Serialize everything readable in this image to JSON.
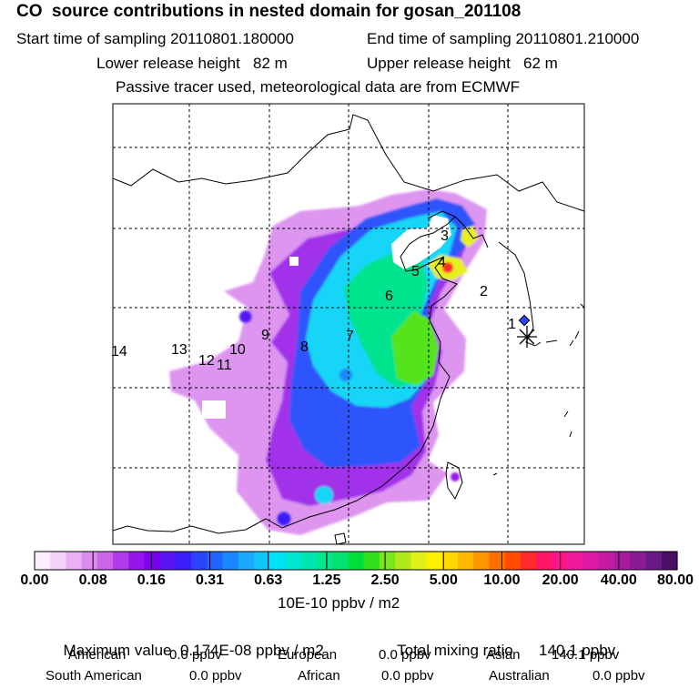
{
  "header": {
    "title": "CO  source contributions in nested domain for gosan_201108",
    "start_label": "Start time of sampling 20110801.180000",
    "end_label": "End time of sampling 20110801.210000",
    "lower_label": "Lower release height   82 m",
    "upper_label": "Upper release height   62 m",
    "passive_label": "Passive tracer used, meteorological data are from ECMWF"
  },
  "chart_data": {
    "type": "heatmap",
    "title": "CO  source contributions in nested domain for gosan_201108",
    "colorbar": {
      "tick_labels": [
        "0.00",
        "0.08",
        "0.16",
        "0.31",
        "0.63",
        "1.25",
        "2.50",
        "5.00",
        "10.00",
        "20.00",
        "40.00",
        "80.00"
      ],
      "units": "10E-10 ppbv / m2",
      "colors": [
        "#fbeefc",
        "#f4d2f8",
        "#eab0f3",
        "#dd8bee",
        "#cc66ea",
        "#b13bea",
        "#9914ea",
        "#7d00f0",
        "#5a14f5",
        "#3b1ff8",
        "#2a44fb",
        "#1f66fd",
        "#1a88fe",
        "#1aa9fe",
        "#10c6fb",
        "#00e3f4",
        "#00e6d2",
        "#00e6b0",
        "#00e68f",
        "#00e36e",
        "#00dd3d",
        "#33e01c",
        "#7ae61c",
        "#b0ea1c",
        "#e0f01a",
        "#fff000",
        "#ffd800",
        "#ffb800",
        "#ff9600",
        "#ff7000",
        "#ff4c00",
        "#ff2a2a",
        "#ff1466",
        "#ff1488",
        "#f01a9a",
        "#dd1aa6",
        "#c41aa6",
        "#a81aa0",
        "#8a1a96",
        "#6a1a84",
        "#4a1066"
      ]
    },
    "source_regions": [
      "1",
      "2",
      "3",
      "4",
      "5",
      "6",
      "7",
      "8",
      "9",
      "10",
      "11",
      "12",
      "13",
      "14"
    ],
    "receptor": "gosan"
  },
  "summary": {
    "max_label": "Maximum value",
    "max_value": "0.174E-08",
    "max_unit": "ppbv / m2",
    "total_label": "Total mixing ratio",
    "total_value": "140.1 ppbv"
  },
  "stats": [
    {
      "label": "American",
      "value": "0.0 ppbv"
    },
    {
      "label": "European",
      "value": "0.0 ppbv"
    },
    {
      "label": "Asian",
      "value": "140.1 ppbv"
    },
    {
      "label": "South American",
      "value": "0.0 ppbv"
    },
    {
      "label": "African",
      "value": "0.0 ppbv"
    },
    {
      "label": "Australian",
      "value": "0.0 ppbv"
    }
  ]
}
